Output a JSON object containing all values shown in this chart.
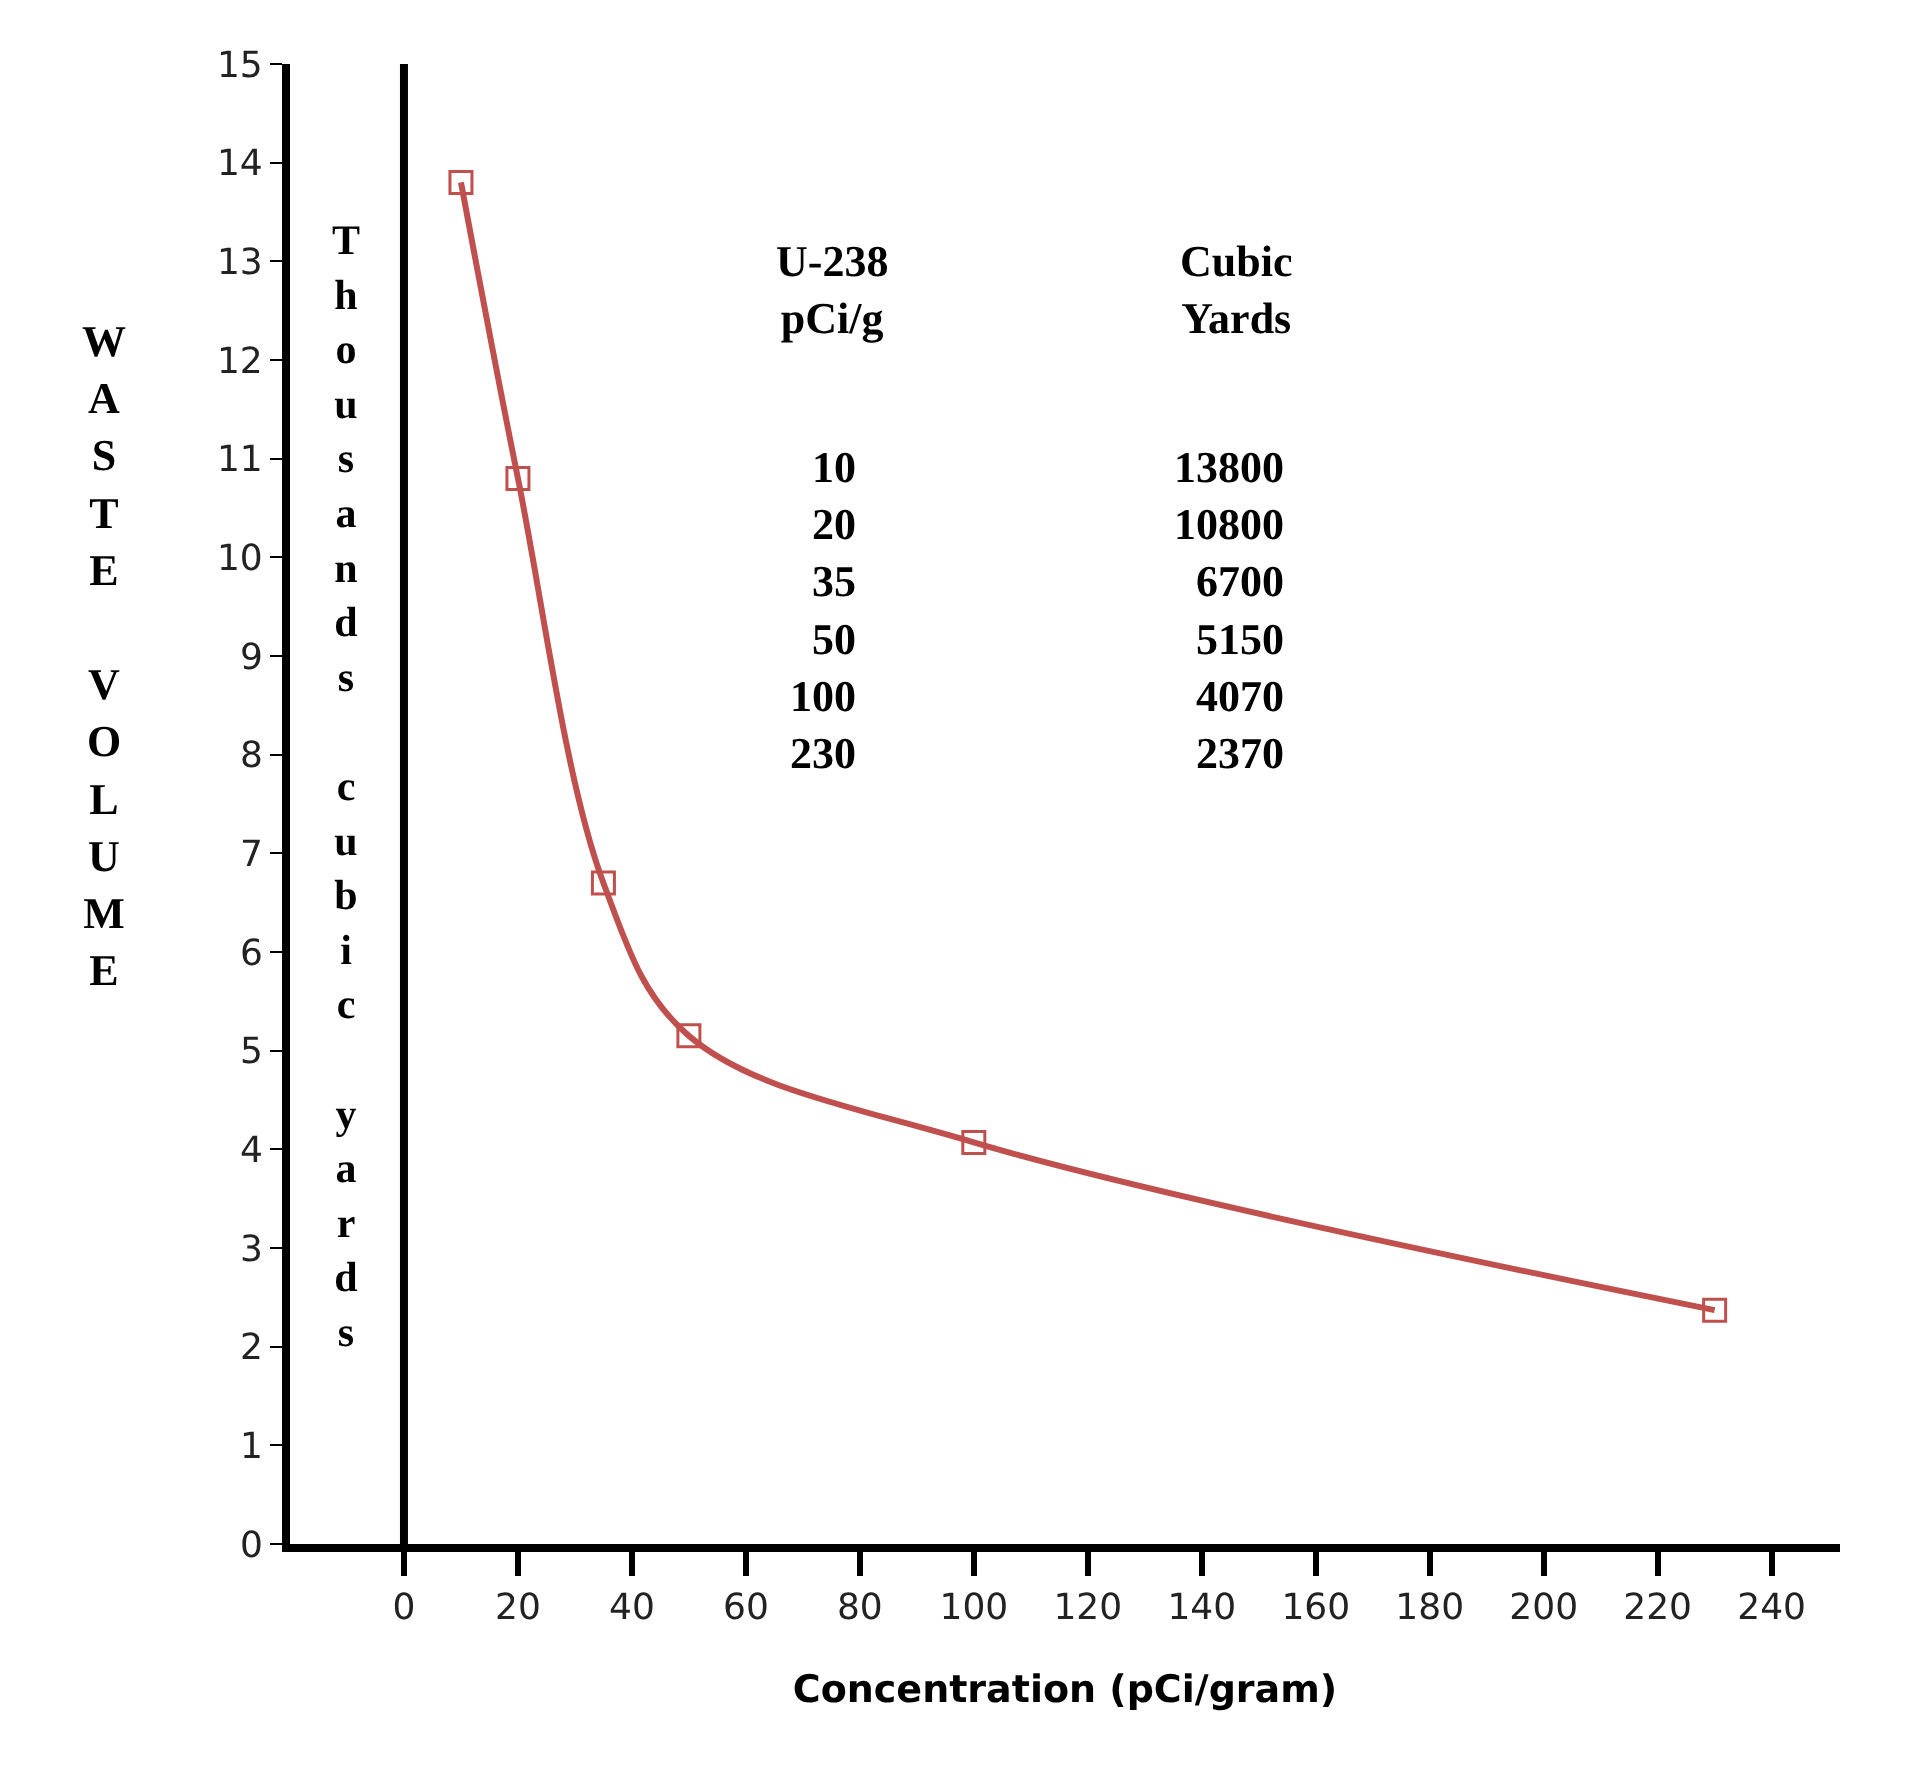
{
  "chart_data": {
    "type": "line",
    "xlabel": "Concentration (pCi/gram)",
    "ylabel": "WASTE VOLUME",
    "annotations": [
      "Thousands cubic yards",
      "U-238\npCi/g",
      "Cubic\nYards",
      "10\n20\n35\n50\n100\n230",
      "13800\n10800\n6700\n5150\n4070\n2370"
    ],
    "x": [
      10,
      20,
      35,
      50,
      100,
      230
    ],
    "series": [
      {
        "color": "#c0504d",
        "values": [
          13.8,
          10.8,
          6.7,
          5.15,
          4.07,
          2.37
        ]
      }
    ],
    "xlim": [
      -20,
      252
    ],
    "xticks": [
      0,
      20,
      40,
      60,
      80,
      100,
      120,
      140,
      160,
      180,
      200,
      220,
      240
    ],
    "ylim": [
      0,
      15
    ],
    "yticks": [
      0,
      1,
      2,
      3,
      4,
      5,
      6,
      7,
      8,
      9,
      10,
      11,
      12,
      13,
      14,
      15
    ],
    "ref_lines": [
      {
        "axis": "x",
        "value": 0,
        "color": "#000000"
      }
    ],
    "legend": false,
    "marker": "square",
    "line_style": "solid"
  }
}
